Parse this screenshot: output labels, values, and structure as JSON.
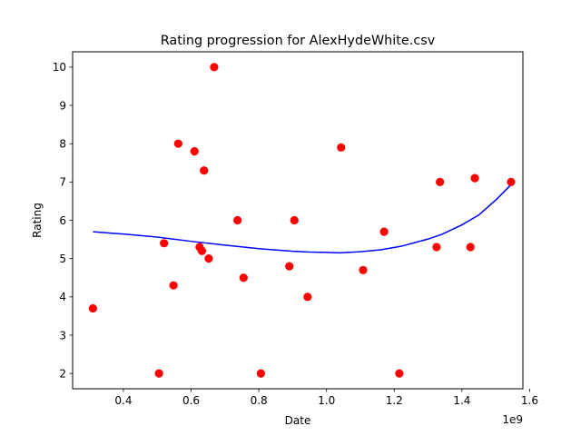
{
  "chart_data": {
    "type": "scatter",
    "title": "Rating progression for AlexHydeWhite.csv",
    "xlabel": "Date",
    "ylabel": "Rating",
    "x_offset_label": "1e9",
    "x_unit_multiplier": 1000000000,
    "xlim": [
      0.25,
      1.58
    ],
    "ylim": [
      1.6,
      10.4
    ],
    "x_ticks": [
      0.4,
      0.6,
      0.8,
      1.0,
      1.2,
      1.4,
      1.6
    ],
    "x_tick_labels": [
      "0.4",
      "0.6",
      "0.8",
      "1.0",
      "1.2",
      "1.4",
      "1.6"
    ],
    "y_ticks": [
      2,
      3,
      4,
      5,
      6,
      7,
      8,
      9,
      10
    ],
    "y_tick_labels": [
      "2",
      "3",
      "4",
      "5",
      "6",
      "7",
      "8",
      "9",
      "10"
    ],
    "grid": false,
    "series": [
      {
        "kind": "points",
        "color": "#ff0000",
        "x": [
          0.31,
          0.505,
          0.52,
          0.548,
          0.562,
          0.61,
          0.625,
          0.632,
          0.638,
          0.652,
          0.668,
          0.737,
          0.755,
          0.806,
          0.89,
          0.905,
          0.944,
          1.043,
          1.108,
          1.17,
          1.215,
          1.325,
          1.335,
          1.425,
          1.438,
          1.545
        ],
        "y": [
          3.7,
          2.0,
          5.4,
          4.3,
          8.0,
          7.8,
          5.3,
          5.2,
          7.3,
          5.0,
          10.0,
          6.0,
          4.5,
          2.0,
          4.8,
          6.0,
          4.0,
          7.9,
          4.7,
          5.7,
          2.0,
          5.3,
          7.0,
          5.3,
          7.1,
          7.0
        ]
      },
      {
        "kind": "line",
        "color": "#0000ff",
        "x": [
          0.31,
          0.4,
          0.5,
          0.6,
          0.7,
          0.8,
          0.9,
          0.95,
          1.0,
          1.04,
          1.1,
          1.16,
          1.22,
          1.3,
          1.34,
          1.4,
          1.45,
          1.5,
          1.545
        ],
        "y": [
          5.7,
          5.64,
          5.56,
          5.45,
          5.35,
          5.26,
          5.19,
          5.17,
          5.16,
          5.15,
          5.18,
          5.23,
          5.32,
          5.51,
          5.63,
          5.88,
          6.14,
          6.53,
          6.93
        ]
      }
    ]
  }
}
